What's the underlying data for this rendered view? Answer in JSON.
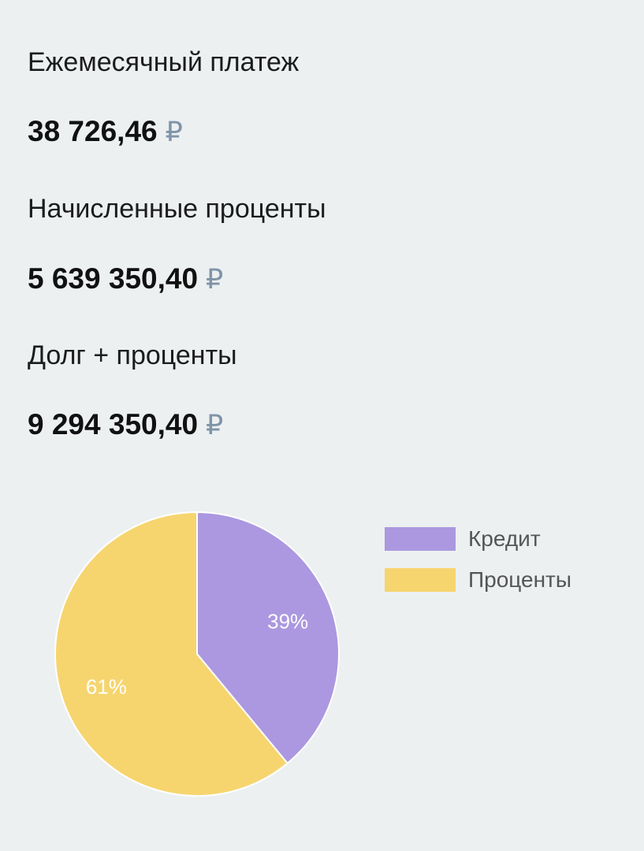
{
  "summary": {
    "monthly_payment": {
      "label": "Ежемесячный платеж",
      "value": "38 726,46",
      "currency": "₽"
    },
    "accrued_interest": {
      "label": "Начисленные проценты",
      "value": "5 639 350,40",
      "currency": "₽"
    },
    "debt_plus_interest": {
      "label": "Долг + проценты",
      "value": "9 294 350,40",
      "currency": "₽"
    }
  },
  "legend": {
    "credit": "Кредит",
    "interest": "Проценты"
  },
  "colors": {
    "credit": "#ab98e0",
    "interest": "#f6d56f",
    "background": "#ecf0f1",
    "currency": "#8094a8"
  },
  "chart_data": {
    "type": "pie",
    "categories": [
      "Кредит",
      "Проценты"
    ],
    "values": [
      39,
      61
    ],
    "labels": [
      "39%",
      "61%"
    ],
    "legend_position": "right"
  }
}
